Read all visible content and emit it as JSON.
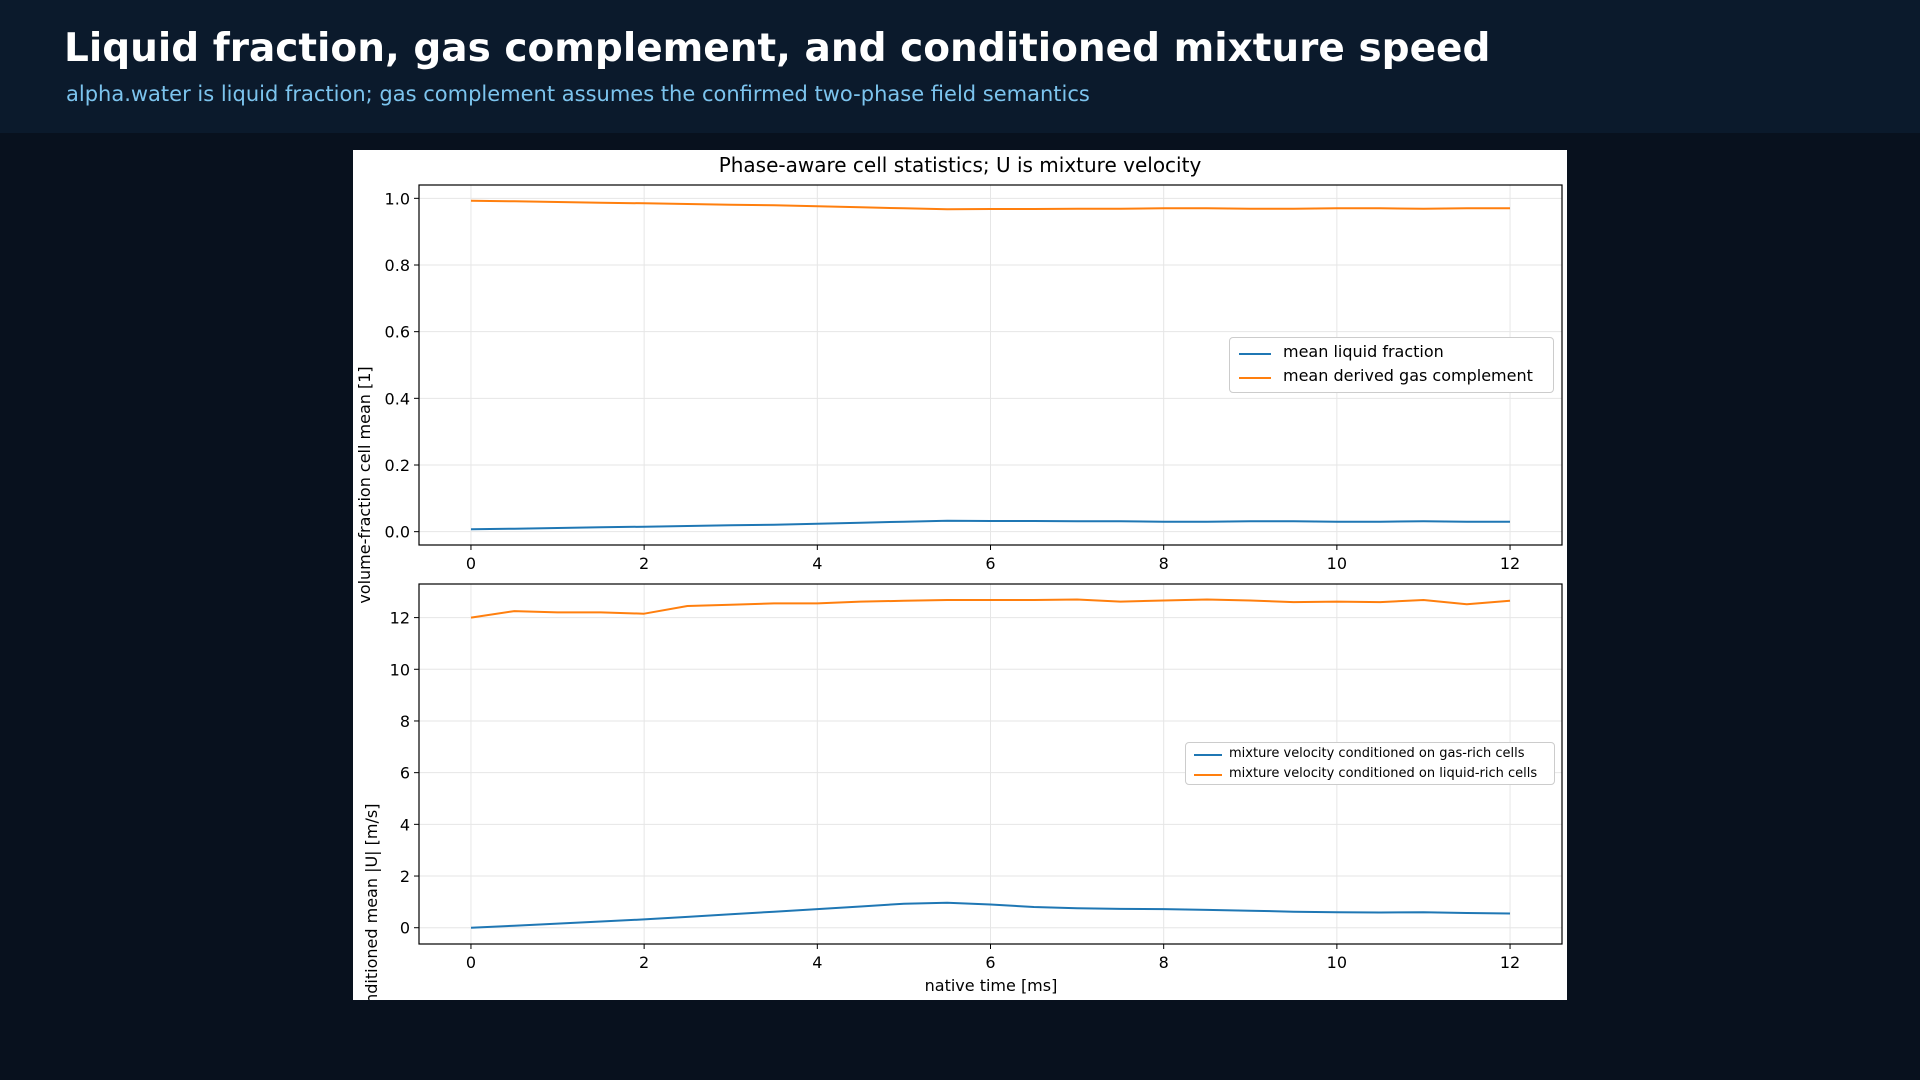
{
  "header": {
    "title": "Liquid fraction, gas complement, and conditioned mixture speed",
    "subtitle": "alpha.water is liquid fraction; gas complement assumes the confirmed two-phase field semantics"
  },
  "colors": {
    "page_bg": "#08111e",
    "header_bg": "#0b1a2c",
    "series_blue": "#1f77b4",
    "series_orange": "#ff7f0e"
  },
  "chart_data": [
    {
      "type": "line",
      "title": "Phase-aware cell statistics; U is mixture velocity",
      "xlabel": "",
      "ylabel": "volume-fraction cell mean [1]",
      "xlim": [
        -0.6,
        12.6
      ],
      "ylim": [
        -0.04,
        1.04
      ],
      "xticks": [
        0,
        2,
        4,
        6,
        8,
        10,
        12
      ],
      "yticks": [
        "0.0",
        "0.2",
        "0.4",
        "0.6",
        "0.8",
        "1.0"
      ],
      "ytick_values": [
        0.0,
        0.2,
        0.4,
        0.6,
        0.8,
        1.0
      ],
      "grid": true,
      "legend_position": "center-right",
      "x": [
        0,
        0.5,
        1,
        1.5,
        2,
        2.5,
        3,
        3.5,
        4,
        4.5,
        5,
        5.5,
        6,
        6.5,
        7,
        7.5,
        8,
        8.5,
        9,
        9.5,
        10,
        10.5,
        11,
        11.5,
        12
      ],
      "series": [
        {
          "name": "mean liquid fraction",
          "color": "#1f77b4",
          "values": [
            0.007,
            0.009,
            0.011,
            0.013,
            0.015,
            0.017,
            0.019,
            0.021,
            0.024,
            0.027,
            0.03,
            0.033,
            0.032,
            0.032,
            0.031,
            0.031,
            0.03,
            0.03,
            0.031,
            0.031,
            0.03,
            0.03,
            0.031,
            0.03,
            0.03
          ]
        },
        {
          "name": "mean derived gas complement",
          "color": "#ff7f0e",
          "values": [
            0.993,
            0.991,
            0.989,
            0.987,
            0.985,
            0.983,
            0.981,
            0.979,
            0.976,
            0.973,
            0.97,
            0.967,
            0.968,
            0.968,
            0.969,
            0.969,
            0.97,
            0.97,
            0.969,
            0.969,
            0.97,
            0.97,
            0.969,
            0.97,
            0.97
          ]
        }
      ]
    },
    {
      "type": "line",
      "title": "",
      "xlabel": "native time [ms]",
      "ylabel": "conditioned mean |U| [m/s]",
      "xlim": [
        -0.6,
        12.6
      ],
      "ylim": [
        -0.63,
        13.3
      ],
      "xticks": [
        0,
        2,
        4,
        6,
        8,
        10,
        12
      ],
      "yticks": [
        "0",
        "2",
        "4",
        "6",
        "8",
        "10",
        "12"
      ],
      "ytick_values": [
        0,
        2,
        4,
        6,
        8,
        10,
        12
      ],
      "grid": true,
      "legend_position": "center-right",
      "x": [
        0,
        0.5,
        1,
        1.5,
        2,
        2.5,
        3,
        3.5,
        4,
        4.5,
        5,
        5.5,
        6,
        6.5,
        7,
        7.5,
        8,
        8.5,
        9,
        9.5,
        10,
        10.5,
        11,
        11.5,
        12
      ],
      "series": [
        {
          "name": "mixture velocity conditioned on gas-rich cells",
          "color": "#1f77b4",
          "values": [
            0.0,
            0.08,
            0.16,
            0.24,
            0.32,
            0.42,
            0.52,
            0.62,
            0.72,
            0.82,
            0.93,
            0.97,
            0.9,
            0.8,
            0.75,
            0.73,
            0.72,
            0.69,
            0.66,
            0.62,
            0.6,
            0.59,
            0.6,
            0.57,
            0.55
          ]
        },
        {
          "name": "mixture velocity conditioned on liquid-rich cells",
          "color": "#ff7f0e",
          "values": [
            12.0,
            12.25,
            12.2,
            12.2,
            12.15,
            12.45,
            12.5,
            12.55,
            12.55,
            12.62,
            12.65,
            12.68,
            12.68,
            12.68,
            12.7,
            12.62,
            12.66,
            12.7,
            12.66,
            12.6,
            12.62,
            12.6,
            12.68,
            12.52,
            12.65
          ]
        }
      ]
    }
  ]
}
